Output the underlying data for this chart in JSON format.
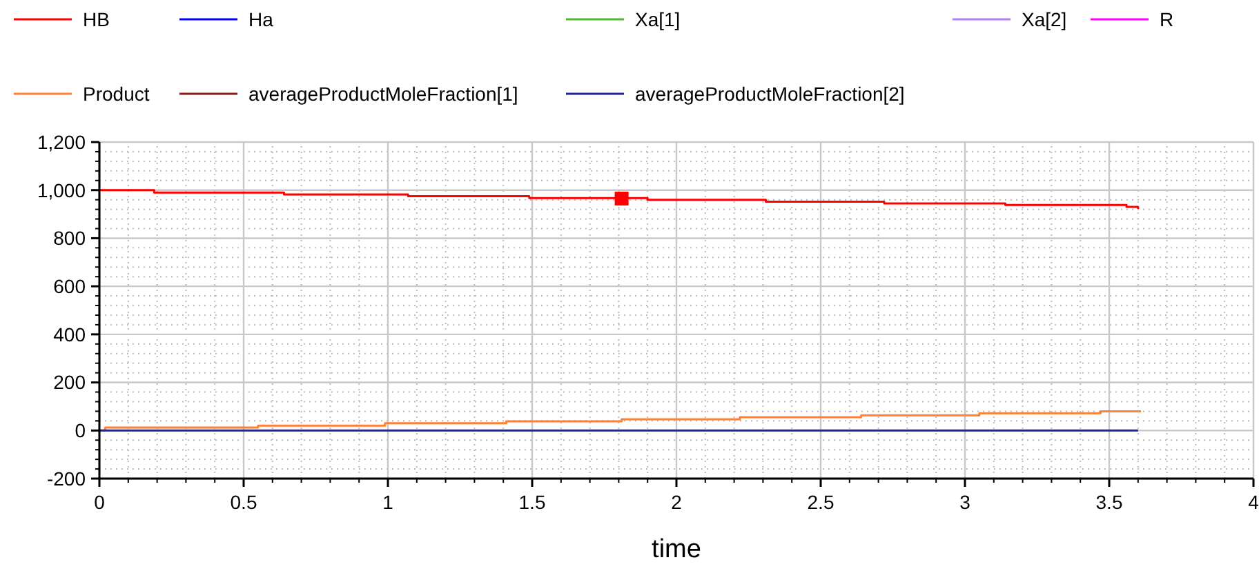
{
  "chart_data": {
    "type": "step",
    "xlabel": "time",
    "xlim": [
      0,
      4
    ],
    "xticks": [
      0,
      0.5,
      1,
      1.5,
      2,
      2.5,
      3,
      3.5,
      4
    ],
    "ylim": [
      -200,
      1200
    ],
    "yticks": [
      -200,
      0,
      200,
      400,
      600,
      800,
      {
        "value": 1000,
        "label": "1,000"
      },
      {
        "value": 1200,
        "label": "1,200"
      }
    ],
    "grid": true,
    "legend": "top",
    "line_style": "solid",
    "marker": "none",
    "series": [
      {
        "name": "HB",
        "color": "#ff0000",
        "x": [
          0,
          0.19,
          0.64,
          1.07,
          1.49,
          1.9,
          2.31,
          2.72,
          3.14,
          3.56,
          3.6
        ],
        "values": [
          1000,
          990,
          982,
          975,
          967,
          960,
          952,
          945,
          938,
          930,
          922
        ]
      },
      {
        "name": "Ha",
        "color": "#0000ff"
      },
      {
        "name": "Xa[1]",
        "color": "#4cb82b"
      },
      {
        "name": "Xa[2]",
        "color": "#b27ff0"
      },
      {
        "name": "R",
        "color": "#ff00ff"
      },
      {
        "name": "Product",
        "color": "#ff8033",
        "x": [
          0,
          0.02,
          0.55,
          0.99,
          1.41,
          1.81,
          2.22,
          2.64,
          3.05,
          3.47,
          3.61
        ],
        "values": [
          0,
          12,
          20,
          30,
          38,
          47,
          55,
          63,
          72,
          80,
          80
        ]
      },
      {
        "name": "averageProductMoleFraction[1]",
        "color": "#8b1a1a"
      },
      {
        "name": "averageProductMoleFraction[2]",
        "color": "#24249a",
        "x": [
          0,
          3.6
        ],
        "values": [
          0,
          0
        ]
      },
      {
        "type": "scatter",
        "marker": "square",
        "color": "#ff0000",
        "x": [
          1.81
        ],
        "values": [
          965
        ]
      }
    ]
  }
}
